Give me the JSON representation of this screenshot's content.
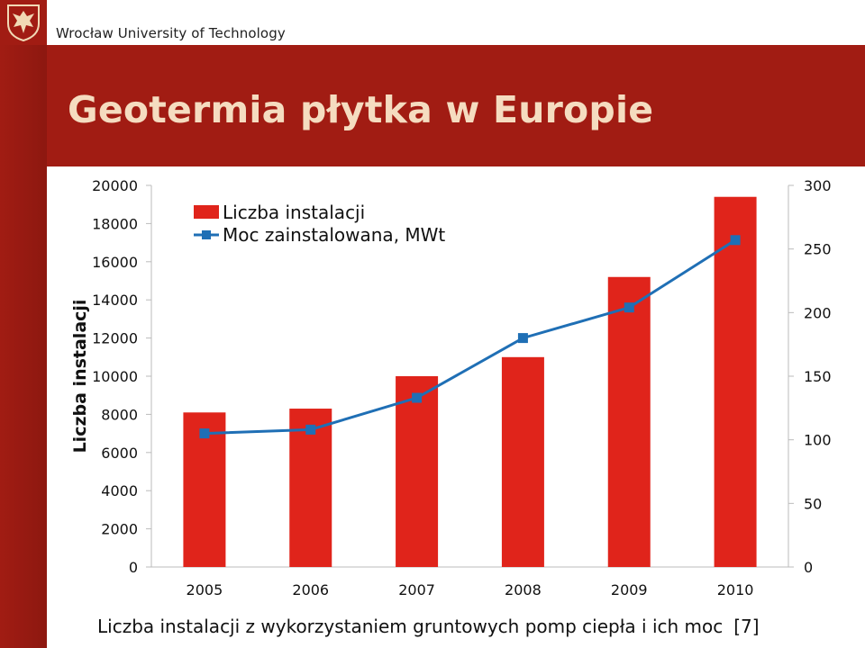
{
  "header": {
    "university": "Wrocław University of Technology",
    "title": "Geotermia płytka w Europie"
  },
  "caption": {
    "text": "Liczba instalacji z wykorzystaniem gruntowych pomp ciepła i ich moc",
    "reference": "[7]"
  },
  "colors": {
    "brand": "#a11c13",
    "bar": "#e0241b",
    "line": "#1f6fb5",
    "title_text": "#f5dcc0"
  },
  "chart_data": {
    "type": "bar",
    "categories": [
      "2005",
      "2006",
      "2007",
      "2008",
      "2009",
      "2010"
    ],
    "series": [
      {
        "name": "Liczba instalacji",
        "type": "bar",
        "axis": "left",
        "values": [
          8100,
          8300,
          10000,
          11000,
          15200,
          19400
        ]
      },
      {
        "name": "Moc zainstalowana, MWt",
        "type": "line",
        "axis": "right",
        "values": [
          105,
          108,
          133,
          180,
          204,
          257
        ]
      }
    ],
    "ylabel": "Liczba instalacji",
    "ylabel_right": "",
    "ylim": [
      0,
      20000
    ],
    "ylim_right": [
      0,
      300
    ],
    "yticks": [
      0,
      2000,
      4000,
      6000,
      8000,
      10000,
      12000,
      14000,
      16000,
      18000,
      20000
    ],
    "yticks_right": [
      0,
      50,
      100,
      150,
      200,
      250,
      300
    ],
    "grid": false,
    "legend_position": "top-left"
  }
}
